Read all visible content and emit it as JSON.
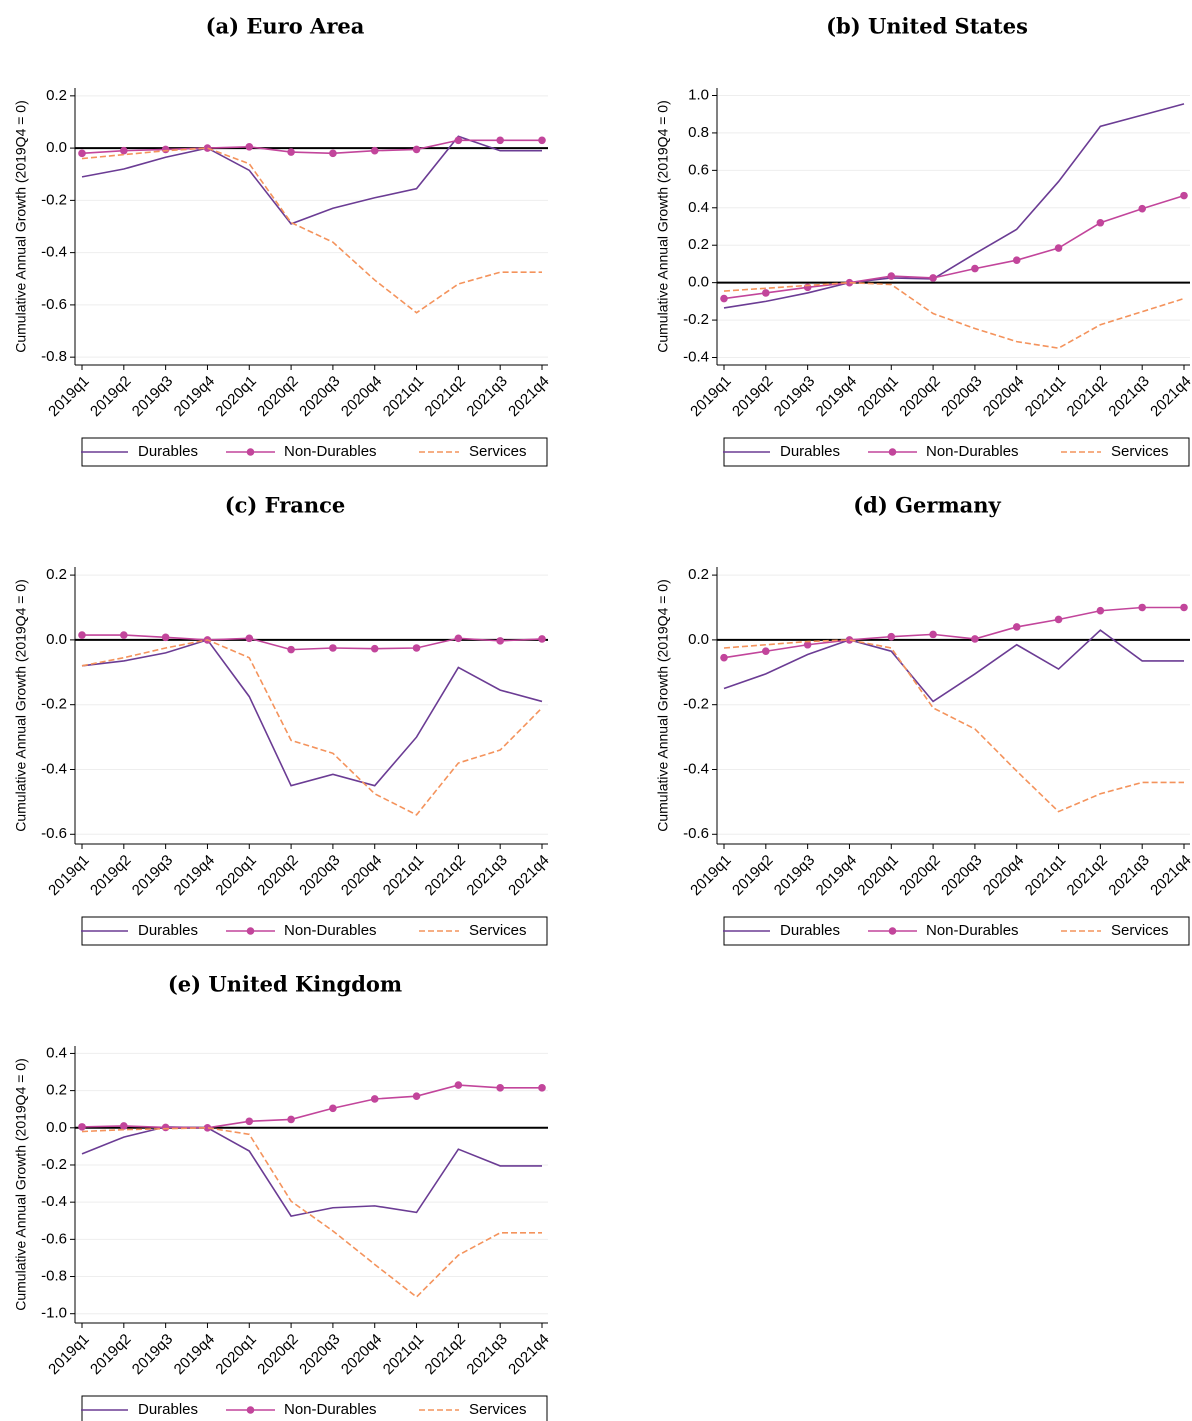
{
  "chart_data": [
    {
      "type": "line",
      "title": "(a) Euro Area",
      "y_label": "Cumulative Annual Growth (2019Q4 = 0)",
      "categories": [
        "2019q1",
        "2019q2",
        "2019q3",
        "2019q4",
        "2020q1",
        "2020q2",
        "2020q3",
        "2020q4",
        "2021q1",
        "2021q2",
        "2021q3",
        "2021q4"
      ],
      "ylim": [
        -0.83,
        0.23
      ],
      "yticks": [
        0.2,
        {
          "value": 0,
          "label": "0.0"
        },
        -0.2,
        -0.4,
        -0.6,
        -0.8
      ],
      "grid": true,
      "series": [
        {
          "name": "Durables",
          "color": "#6b3c94",
          "style": "solid",
          "marker": false,
          "values": [
            -0.11,
            -0.08,
            -0.035,
            0,
            -0.085,
            -0.29,
            -0.23,
            -0.19,
            -0.155,
            0.045,
            -0.01,
            -0.01
          ]
        },
        {
          "name": "Non-Durables",
          "color": "#c2459b",
          "style": "solid",
          "marker": true,
          "values": [
            -0.02,
            -0.01,
            -0.005,
            0,
            0.005,
            -0.015,
            -0.02,
            -0.01,
            -0.005,
            0.03,
            0.03,
            0.03
          ]
        },
        {
          "name": "Services",
          "color": "#f4935c",
          "style": "dashed",
          "marker": false,
          "values": [
            -0.04,
            -0.025,
            -0.01,
            0,
            -0.06,
            -0.285,
            -0.36,
            -0.505,
            -0.63,
            -0.52,
            -0.475,
            -0.475
          ]
        }
      ]
    },
    {
      "type": "line",
      "title": "(b) United States",
      "y_label": "Cumulative Annual Growth (2019Q4 = 0)",
      "categories": [
        "2019q1",
        "2019q2",
        "2019q3",
        "2019q4",
        "2020q1",
        "2020q2",
        "2020q3",
        "2020q4",
        "2021q1",
        "2021q2",
        "2021q3",
        "2021q4"
      ],
      "ylim": [
        -0.44,
        1.04
      ],
      "yticks": [
        {
          "value": 1,
          "label": "1.0"
        },
        0.8,
        0.6,
        0.4,
        0.2,
        {
          "value": 0,
          "label": "0.0"
        },
        -0.2,
        -0.4
      ],
      "grid": true,
      "series": [
        {
          "name": "Durables",
          "color": "#6b3c94",
          "style": "solid",
          "marker": false,
          "values": [
            -0.135,
            -0.1,
            -0.055,
            0,
            0.025,
            0.02,
            0.155,
            0.285,
            0.54,
            0.835,
            0.895,
            0.955
          ]
        },
        {
          "name": "Non-Durables",
          "color": "#c2459b",
          "style": "solid",
          "marker": true,
          "values": [
            -0.085,
            -0.055,
            -0.025,
            0,
            0.035,
            0.025,
            0.075,
            0.12,
            0.185,
            0.32,
            0.395,
            0.465
          ]
        },
        {
          "name": "Services",
          "color": "#f4935c",
          "style": "dashed",
          "marker": false,
          "values": [
            -0.045,
            -0.03,
            -0.015,
            0,
            -0.01,
            -0.165,
            -0.245,
            -0.315,
            -0.35,
            -0.225,
            -0.155,
            -0.085
          ]
        }
      ]
    },
    {
      "type": "line",
      "title": "(c) France",
      "y_label": "Cumulative Annual Growth (2019Q4 = 0)",
      "categories": [
        "2019q1",
        "2019q2",
        "2019q3",
        "2019q4",
        "2020q1",
        "2020q2",
        "2020q3",
        "2020q4",
        "2021q1",
        "2021q2",
        "2021q3",
        "2021q4"
      ],
      "ylim": [
        -0.63,
        0.225
      ],
      "yticks": [
        0.2,
        {
          "value": 0,
          "label": "0.0"
        },
        -0.2,
        -0.4,
        -0.6
      ],
      "grid": true,
      "series": [
        {
          "name": "Durables",
          "color": "#6b3c94",
          "style": "solid",
          "marker": false,
          "values": [
            -0.08,
            -0.065,
            -0.04,
            0,
            -0.175,
            -0.45,
            -0.415,
            -0.45,
            -0.3,
            -0.085,
            -0.155,
            -0.19
          ]
        },
        {
          "name": "Non-Durables",
          "color": "#c2459b",
          "style": "solid",
          "marker": true,
          "values": [
            0.015,
            0.015,
            0.008,
            0,
            0.005,
            -0.03,
            -0.025,
            -0.027,
            -0.025,
            0.005,
            -0.003,
            0.003
          ]
        },
        {
          "name": "Services",
          "color": "#f4935c",
          "style": "dashed",
          "marker": false,
          "values": [
            -0.08,
            -0.055,
            -0.025,
            0,
            -0.055,
            -0.31,
            -0.35,
            -0.475,
            -0.54,
            -0.38,
            -0.34,
            -0.21
          ]
        }
      ]
    },
    {
      "type": "line",
      "title": "(d) Germany",
      "y_label": "Cumulative Annual Growth (2019Q4 = 0)",
      "categories": [
        "2019q1",
        "2019q2",
        "2019q3",
        "2019q4",
        "2020q1",
        "2020q2",
        "2020q3",
        "2020q4",
        "2021q1",
        "2021q2",
        "2021q3",
        "2021q4"
      ],
      "ylim": [
        -0.63,
        0.225
      ],
      "yticks": [
        0.2,
        {
          "value": 0,
          "label": "0.0"
        },
        -0.2,
        -0.4,
        -0.6
      ],
      "grid": true,
      "series": [
        {
          "name": "Durables",
          "color": "#6b3c94",
          "style": "solid",
          "marker": false,
          "values": [
            -0.15,
            -0.105,
            -0.045,
            0,
            -0.035,
            -0.19,
            -0.105,
            -0.015,
            -0.09,
            0.03,
            -0.065,
            -0.065
          ]
        },
        {
          "name": "Non-Durables",
          "color": "#c2459b",
          "style": "solid",
          "marker": true,
          "values": [
            -0.055,
            -0.035,
            -0.015,
            0,
            0.01,
            0.017,
            0.003,
            0.04,
            0.063,
            0.09,
            0.1,
            0.1
          ]
        },
        {
          "name": "Services",
          "color": "#f4935c",
          "style": "dashed",
          "marker": false,
          "values": [
            -0.025,
            -0.015,
            -0.005,
            0,
            -0.025,
            -0.21,
            -0.275,
            -0.405,
            -0.53,
            -0.475,
            -0.44,
            -0.44
          ]
        }
      ]
    },
    {
      "type": "line",
      "title": "(e) United Kingdom",
      "y_label": "Cumulative Annual Growth (2019Q4 = 0)",
      "categories": [
        "2019q1",
        "2019q2",
        "2019q3",
        "2019q4",
        "2020q1",
        "2020q2",
        "2020q3",
        "2020q4",
        "2021q1",
        "2021q2",
        "2021q3",
        "2021q4"
      ],
      "ylim": [
        -1.05,
        0.44
      ],
      "yticks": [
        0.4,
        0.2,
        {
          "value": 0,
          "label": "0.0"
        },
        -0.2,
        -0.4,
        -0.6,
        -0.8,
        {
          "value": -1,
          "label": "-1.0"
        }
      ],
      "grid": true,
      "series": [
        {
          "name": "Durables",
          "color": "#6b3c94",
          "style": "solid",
          "marker": false,
          "values": [
            -0.14,
            -0.05,
            0.005,
            0,
            -0.125,
            -0.475,
            -0.43,
            -0.42,
            -0.455,
            -0.115,
            -0.205,
            -0.205
          ]
        },
        {
          "name": "Non-Durables",
          "color": "#c2459b",
          "style": "solid",
          "marker": true,
          "values": [
            0.005,
            0.01,
            0.002,
            0,
            0.035,
            0.045,
            0.105,
            0.155,
            0.17,
            0.23,
            0.215,
            0.215
          ]
        },
        {
          "name": "Services",
          "color": "#f4935c",
          "style": "dashed",
          "marker": false,
          "values": [
            -0.02,
            -0.01,
            -0.005,
            0,
            -0.035,
            -0.395,
            -0.555,
            -0.735,
            -0.91,
            -0.685,
            -0.565,
            -0.565
          ]
        }
      ]
    }
  ]
}
